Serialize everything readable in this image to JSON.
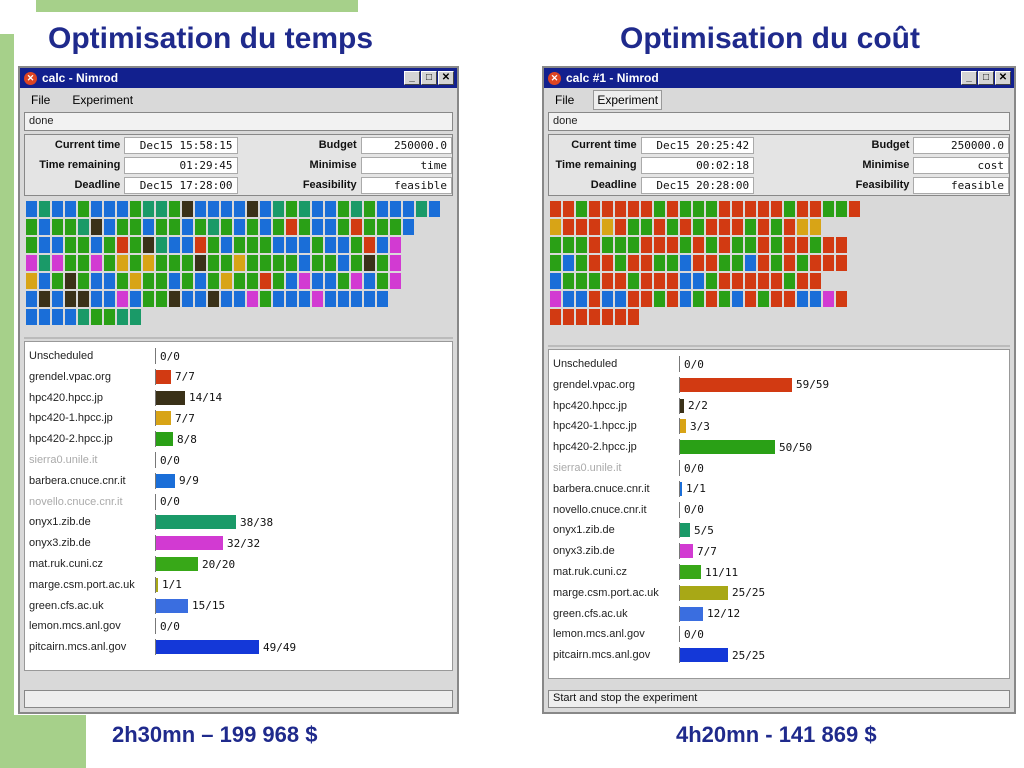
{
  "slide": {
    "left_title": "Optimisation du temps",
    "right_title": "Optimisation du coût",
    "left_caption": "2h30mn – 199 968 $",
    "right_caption": "4h20mn - 141 869 $"
  },
  "colors": {
    "red": "#d23a12",
    "dark": "#3a3118",
    "gold": "#d8a416",
    "green": "#2aa016",
    "blue": "#1a6ed8",
    "teal": "#1a9a68",
    "magenta": "#d23ad2",
    "leaf": "#38a818",
    "olive": "#a8a816",
    "sky": "#3a6ee0",
    "navy": "#1438d8"
  },
  "left_window": {
    "title": "calc - Nimrod",
    "menu": [
      "File",
      "Experiment"
    ],
    "status": "done",
    "info": {
      "current_time_label": "Current time",
      "current_time": "Dec15 15:58:15",
      "time_remaining_label": "Time remaining",
      "time_remaining": "01:29:45",
      "deadline_label": "Deadline",
      "deadline": "Dec15 17:28:00",
      "budget_label": "Budget",
      "budget": "250000.0",
      "minimise_label": "Minimise",
      "minimise": "time",
      "feasibility_label": "Feasibility",
      "feasibility": "feasible"
    },
    "grid_rows": [
      "BTBBGBBBGTTGDBBBBDBTGTBBGTGBBBTB",
      "GBGGTDBGGBGGBGTGBGBGRGBBGRGGGB",
      "GBBGGBGRGDTBBRGBGGGBBBGBBGRBM",
      "MTMGGMGOGOGGGDGGOGGGGBGGBGDGM",
      "OBGDGBBGOGGBGBGOGGRGBMBBGMBGM",
      "BDBDDBBMBGGDBBDBBMGBBBMBBBBB",
      "BBBBTGGTT"
    ],
    "footer": "",
    "resources": [
      {
        "host": "Unscheduled",
        "count": "0/0",
        "color": "",
        "frac": 0,
        "dim": false
      },
      {
        "host": "grendel.vpac.org",
        "count": "7/7",
        "color": "red",
        "frac": 0.07,
        "dim": false
      },
      {
        "host": "hpc420.hpcc.jp",
        "count": "14/14",
        "color": "dark",
        "frac": 0.14,
        "dim": false
      },
      {
        "host": "hpc420-1.hpcc.jp",
        "count": "7/7",
        "color": "gold",
        "frac": 0.07,
        "dim": false
      },
      {
        "host": "hpc420-2.hpcc.jp",
        "count": "8/8",
        "color": "green",
        "frac": 0.08,
        "dim": false
      },
      {
        "host": "sierra0.unile.it",
        "count": "0/0",
        "color": "",
        "frac": 0,
        "dim": true
      },
      {
        "host": "barbera.cnuce.cnr.it",
        "count": "9/9",
        "color": "blue",
        "frac": 0.09,
        "dim": false
      },
      {
        "host": "novello.cnuce.cnr.it",
        "count": "0/0",
        "color": "",
        "frac": 0,
        "dim": true
      },
      {
        "host": "onyx1.zib.de",
        "count": "38/38",
        "color": "teal",
        "frac": 0.38,
        "dim": false
      },
      {
        "host": "onyx3.zib.de",
        "count": "32/32",
        "color": "magenta",
        "frac": 0.32,
        "dim": false
      },
      {
        "host": "mat.ruk.cuni.cz",
        "count": "20/20",
        "color": "leaf",
        "frac": 0.2,
        "dim": false
      },
      {
        "host": "marge.csm.port.ac.uk",
        "count": "1/1",
        "color": "olive",
        "frac": 0.01,
        "dim": false
      },
      {
        "host": "green.cfs.ac.uk",
        "count": "15/15",
        "color": "sky",
        "frac": 0.15,
        "dim": false
      },
      {
        "host": "lemon.mcs.anl.gov",
        "count": "0/0",
        "color": "",
        "frac": 0,
        "dim": false
      },
      {
        "host": "pitcairn.mcs.anl.gov",
        "count": "49/49",
        "color": "navy",
        "frac": 0.49,
        "dim": false
      }
    ]
  },
  "right_window": {
    "title": "calc #1 - Nimrod",
    "menu": [
      "File",
      "Experiment"
    ],
    "status": "done",
    "info": {
      "current_time_label": "Current time",
      "current_time": "Dec15 20:25:42",
      "time_remaining_label": "Time remaining",
      "time_remaining": "00:02:18",
      "deadline_label": "Deadline",
      "deadline": "Dec15 20:28:00",
      "budget_label": "Budget",
      "budget": "250000.0",
      "minimise_label": "Minimise",
      "minimise": "cost",
      "feasibility_label": "Feasibility",
      "feasibility": "feasible"
    },
    "grid_rows": [
      "RRGRRRRRGRGGGRRRRRGRRGGR",
      "ORRRORGGRGRGRRRGRGROO",
      "GGGRGGGRRRGRGRGGRGRRGRR",
      "GBGRRGRRGGBRRGGBRGRGRRR",
      "BGGGRRGRRRBBGRRRRRGRR",
      "MBBRBBRRGRBGRGBRGRRBBMR",
      "RRRRRRR"
    ],
    "footer": "Start and stop the experiment",
    "resources": [
      {
        "host": "Unscheduled",
        "count": "0/0",
        "color": "",
        "frac": 0,
        "dim": false
      },
      {
        "host": "grendel.vpac.org",
        "count": "59/59",
        "color": "red",
        "frac": 0.59,
        "dim": false
      },
      {
        "host": "hpc420.hpcc.jp",
        "count": "2/2",
        "color": "dark",
        "frac": 0.02,
        "dim": false
      },
      {
        "host": "hpc420-1.hpcc.jp",
        "count": "3/3",
        "color": "gold",
        "frac": 0.03,
        "dim": false
      },
      {
        "host": "hpc420-2.hpcc.jp",
        "count": "50/50",
        "color": "green",
        "frac": 0.5,
        "dim": false
      },
      {
        "host": "sierra0.unile.it",
        "count": "0/0",
        "color": "",
        "frac": 0,
        "dim": true
      },
      {
        "host": "barbera.cnuce.cnr.it",
        "count": "1/1",
        "color": "blue",
        "frac": 0.01,
        "dim": false
      },
      {
        "host": "novello.cnuce.cnr.it",
        "count": "0/0",
        "color": "",
        "frac": 0,
        "dim": false
      },
      {
        "host": "onyx1.zib.de",
        "count": "5/5",
        "color": "teal",
        "frac": 0.05,
        "dim": false
      },
      {
        "host": "onyx3.zib.de",
        "count": "7/7",
        "color": "magenta",
        "frac": 0.07,
        "dim": false
      },
      {
        "host": "mat.ruk.cuni.cz",
        "count": "11/11",
        "color": "leaf",
        "frac": 0.11,
        "dim": false
      },
      {
        "host": "marge.csm.port.ac.uk",
        "count": "25/25",
        "color": "olive",
        "frac": 0.25,
        "dim": false
      },
      {
        "host": "green.cfs.ac.uk",
        "count": "12/12",
        "color": "sky",
        "frac": 0.12,
        "dim": false
      },
      {
        "host": "lemon.mcs.anl.gov",
        "count": "0/0",
        "color": "",
        "frac": 0,
        "dim": false
      },
      {
        "host": "pitcairn.mcs.anl.gov",
        "count": "25/25",
        "color": "navy",
        "frac": 0.25,
        "dim": false
      }
    ]
  }
}
